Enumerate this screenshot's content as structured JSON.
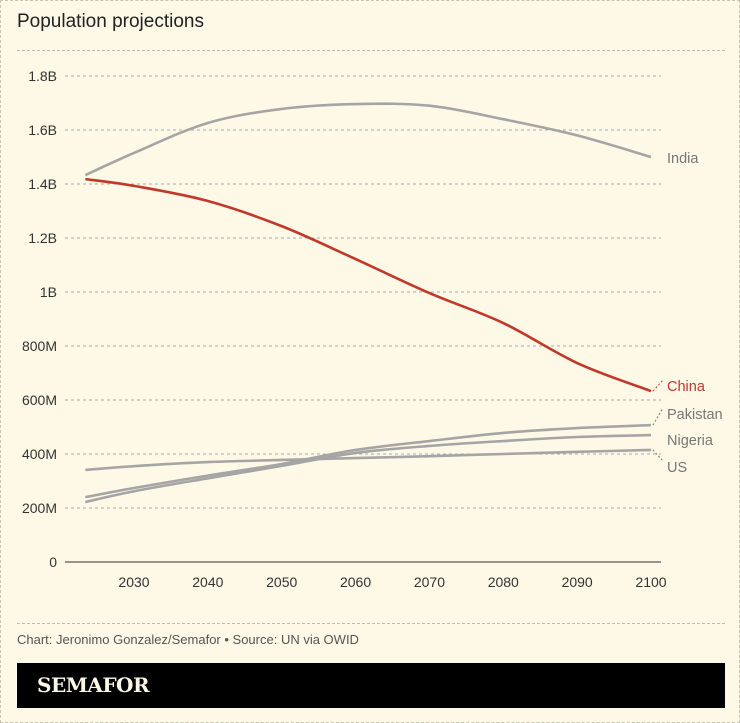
{
  "title": "Population projections",
  "credit": "Chart: Jeronimo Gonzalez/Semafor • Source: UN via OWID",
  "logo": "SEMAFOR",
  "chart_data": {
    "type": "line",
    "title": "Population projections",
    "xlim": [
      2023,
      2100
    ],
    "ylim": [
      0,
      1800000000
    ],
    "xticks": [
      2030,
      2040,
      2050,
      2060,
      2070,
      2080,
      2090,
      2100
    ],
    "yticks": [
      0,
      200000000,
      400000000,
      600000000,
      800000000,
      1000000000,
      1200000000,
      1400000000,
      1600000000,
      1800000000
    ],
    "ytick_labels": [
      "0",
      "200M",
      "400M",
      "600M",
      "800M",
      "1B",
      "1.2B",
      "1.4B",
      "1.6B",
      "1.8B"
    ],
    "grid": "horizontal dashed",
    "legend": "direct labels at line ends (right)",
    "x": [
      2023,
      2030,
      2040,
      2050,
      2060,
      2070,
      2080,
      2090,
      2100
    ],
    "series": [
      {
        "name": "India",
        "color": "#a5a5a5",
        "values": [
          1433000000,
          1515000000,
          1626000000,
          1678000000,
          1696000000,
          1690000000,
          1640000000,
          1580000000,
          1500000000
        ]
      },
      {
        "name": "China",
        "color": "#c0392b",
        "values": [
          1418000000,
          1393000000,
          1337000000,
          1244000000,
          1122000000,
          996000000,
          885000000,
          737000000,
          633000000
        ]
      },
      {
        "name": "Pakistan",
        "color": "#a5a5a5",
        "values": [
          240000000,
          274000000,
          320000000,
          363000000,
          415000000,
          448000000,
          478000000,
          496000000,
          507000000
        ]
      },
      {
        "name": "Nigeria",
        "color": "#a5a5a5",
        "values": [
          222000000,
          262000000,
          310000000,
          356000000,
          404000000,
          430000000,
          448000000,
          463000000,
          470000000
        ]
      },
      {
        "name": "US",
        "color": "#a5a5a5",
        "values": [
          341000000,
          355000000,
          370000000,
          378000000,
          385000000,
          392000000,
          400000000,
          408000000,
          415000000
        ]
      }
    ]
  }
}
